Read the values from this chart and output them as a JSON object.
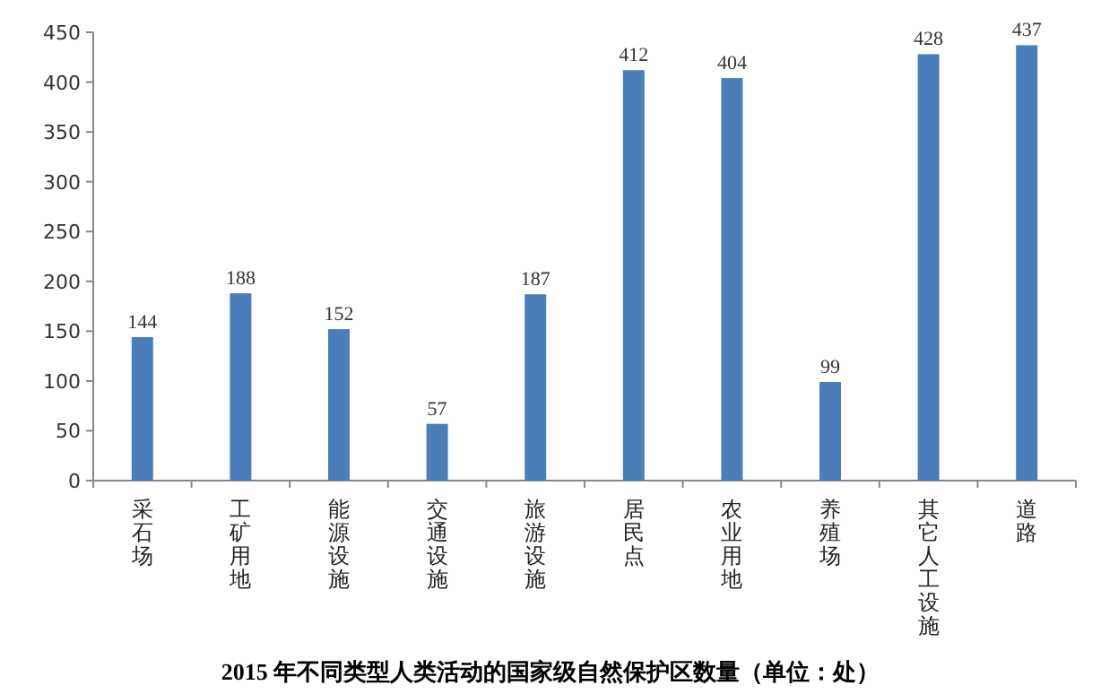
{
  "chart_data": {
    "type": "bar",
    "title": "2015 年不同类型人类活动的国家级自然保护区数量（单位：处）",
    "categories": [
      "采石场",
      "工矿用地",
      "能源设施",
      "交通设施",
      "旅游设施",
      "居民点",
      "农业用地",
      "养殖场",
      "其它人工设施",
      "道路"
    ],
    "values": [
      144,
      188,
      152,
      57,
      187,
      412,
      404,
      99,
      428,
      437
    ],
    "color": "#4a7ebb",
    "ylim": [
      0,
      450
    ],
    "yticks": [
      0,
      50,
      100,
      150,
      200,
      250,
      300,
      350,
      400,
      450
    ],
    "data_labels": true
  }
}
